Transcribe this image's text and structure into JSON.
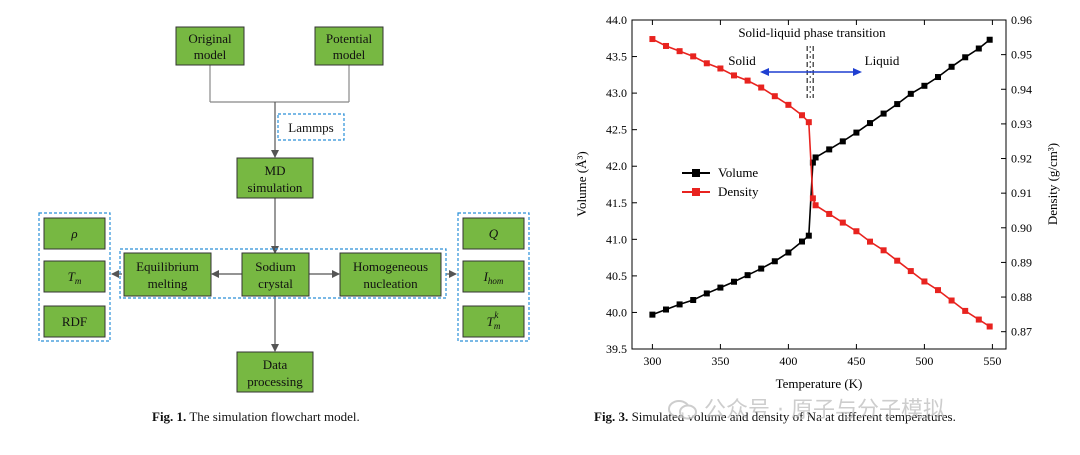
{
  "figure1": {
    "caption_label": "Fig. 1.",
    "caption_text": "The simulation flowchart model.",
    "boxes": {
      "original_line1": "Original",
      "original_line2": "model",
      "potential_line1": "Potential",
      "potential_line2": "model",
      "lammps": "Lammps",
      "md_line1": "MD",
      "md_line2": "simulation",
      "equilibrium_line1": "Equilibrium",
      "equilibrium_line2": "melting",
      "sodium_line1": "Sodium",
      "sodium_line2": "crystal",
      "homogeneous_line1": "Homogeneous",
      "homogeneous_line2": "nucleation",
      "data_line1": "Data",
      "data_line2": "processing",
      "rho": "ρ",
      "tm": "T",
      "tm_sub": "m",
      "rdf": "RDF",
      "q": "Q",
      "ihom": "I",
      "ihom_sub": "hom",
      "tmk": "T",
      "tmk_sub": "m",
      "tmk_sup": "k"
    },
    "colors": {
      "box_fill": "#77b842",
      "dashed": "#2a8fd8",
      "arrow": "#555555"
    }
  },
  "figure3": {
    "caption_label": "Fig. 3.",
    "caption_text": "Simulated volume and density of Na at different temperatures."
  },
  "chart_data": {
    "type": "line",
    "title": "Solid-liquid phase transition",
    "xlabel": "Temperature (K)",
    "ylabel_left": "Volume (Å³)",
    "ylabel_right": "Density (g/cm³)",
    "xlim": [
      285,
      560
    ],
    "ylim_left": [
      39.5,
      44.0
    ],
    "ylim_right": [
      0.865,
      0.96
    ],
    "xticks": [
      "300",
      "350",
      "400",
      "450",
      "500",
      "550"
    ],
    "yticks_left": [
      "39.5",
      "40.0",
      "40.5",
      "41.0",
      "41.5",
      "42.0",
      "42.5",
      "43.0",
      "43.5",
      "44.0"
    ],
    "yticks_right": [
      "0.87",
      "0.88",
      "0.89",
      "0.90",
      "0.91",
      "0.92",
      "0.93",
      "0.94",
      "0.95",
      "0.96"
    ],
    "annotations": {
      "solid": "Solid",
      "liquid": "Liquid",
      "transition_x": 416
    },
    "legend_position": "center-left",
    "series": [
      {
        "name": "Volume",
        "axis": "left",
        "color": "#000000",
        "x": [
          300,
          310,
          320,
          330,
          340,
          350,
          360,
          370,
          380,
          390,
          400,
          410,
          415,
          418,
          420,
          430,
          440,
          450,
          460,
          470,
          480,
          490,
          500,
          510,
          520,
          530,
          540,
          548
        ],
        "y": [
          39.97,
          40.04,
          40.11,
          40.17,
          40.26,
          40.34,
          40.42,
          40.51,
          40.6,
          40.7,
          40.82,
          40.97,
          41.05,
          42.05,
          42.12,
          42.23,
          42.34,
          42.46,
          42.59,
          42.72,
          42.85,
          42.99,
          43.1,
          43.22,
          43.36,
          43.49,
          43.61,
          43.73
        ]
      },
      {
        "name": "Density",
        "axis": "right",
        "color": "#e8231f",
        "x": [
          300,
          310,
          320,
          330,
          340,
          350,
          360,
          370,
          380,
          390,
          400,
          410,
          415,
          418,
          420,
          430,
          440,
          450,
          460,
          470,
          480,
          490,
          500,
          510,
          520,
          530,
          540,
          548
        ],
        "y": [
          0.9545,
          0.9525,
          0.951,
          0.9495,
          0.9475,
          0.946,
          0.944,
          0.9425,
          0.9405,
          0.938,
          0.9355,
          0.9325,
          0.9305,
          0.9085,
          0.9065,
          0.904,
          0.9015,
          0.899,
          0.896,
          0.8935,
          0.8905,
          0.8875,
          0.8845,
          0.882,
          0.879,
          0.876,
          0.8735,
          0.8715
        ]
      }
    ]
  }
}
